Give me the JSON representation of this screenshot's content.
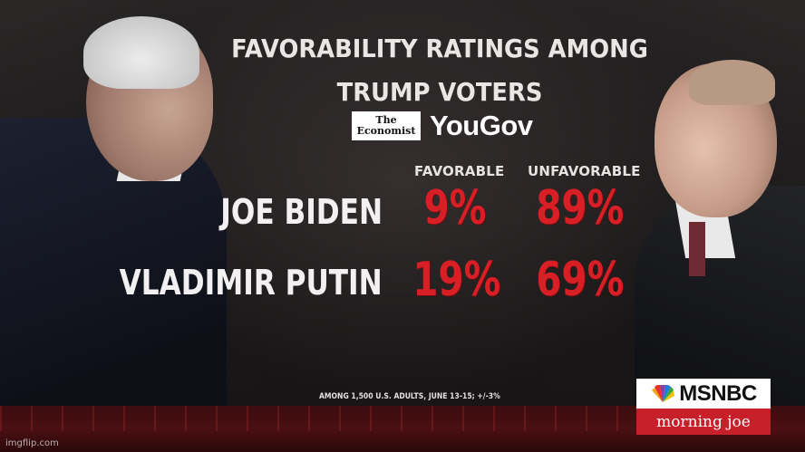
{
  "chart_data": {
    "type": "table",
    "title": "FAVORABILITY RATINGS AMONG TRUMP VOTERS",
    "columns": [
      "FAVORABLE",
      "UNFAVORABLE"
    ],
    "rows": [
      {
        "label": "JOE BIDEN",
        "values": [
          "9%",
          "89%"
        ],
        "favorable": 9,
        "unfavorable": 89
      },
      {
        "label": "VLADIMIR PUTIN",
        "values": [
          "19%",
          "69%"
        ],
        "favorable": 19,
        "unfavorable": 69
      }
    ]
  },
  "header": {
    "title_line1": "FAVORABILITY RATINGS AMONG",
    "title_line2": "TRUMP VOTERS"
  },
  "sources": {
    "economist_line1": "The",
    "economist_line2": "Economist",
    "yougov": "YouGov"
  },
  "footnote": "AMONG 1,500 U.S. ADULTS, JUNE 13-15; +/-3%",
  "branding": {
    "network": "MSNBC",
    "show": "morning joe",
    "watermark": "imgflip.com"
  },
  "colors": {
    "value_red": "#d91f26",
    "bar_dark_red": "#4a1012",
    "show_red": "#c8202b"
  },
  "icons": {
    "network_logo": "peacock-icon"
  }
}
